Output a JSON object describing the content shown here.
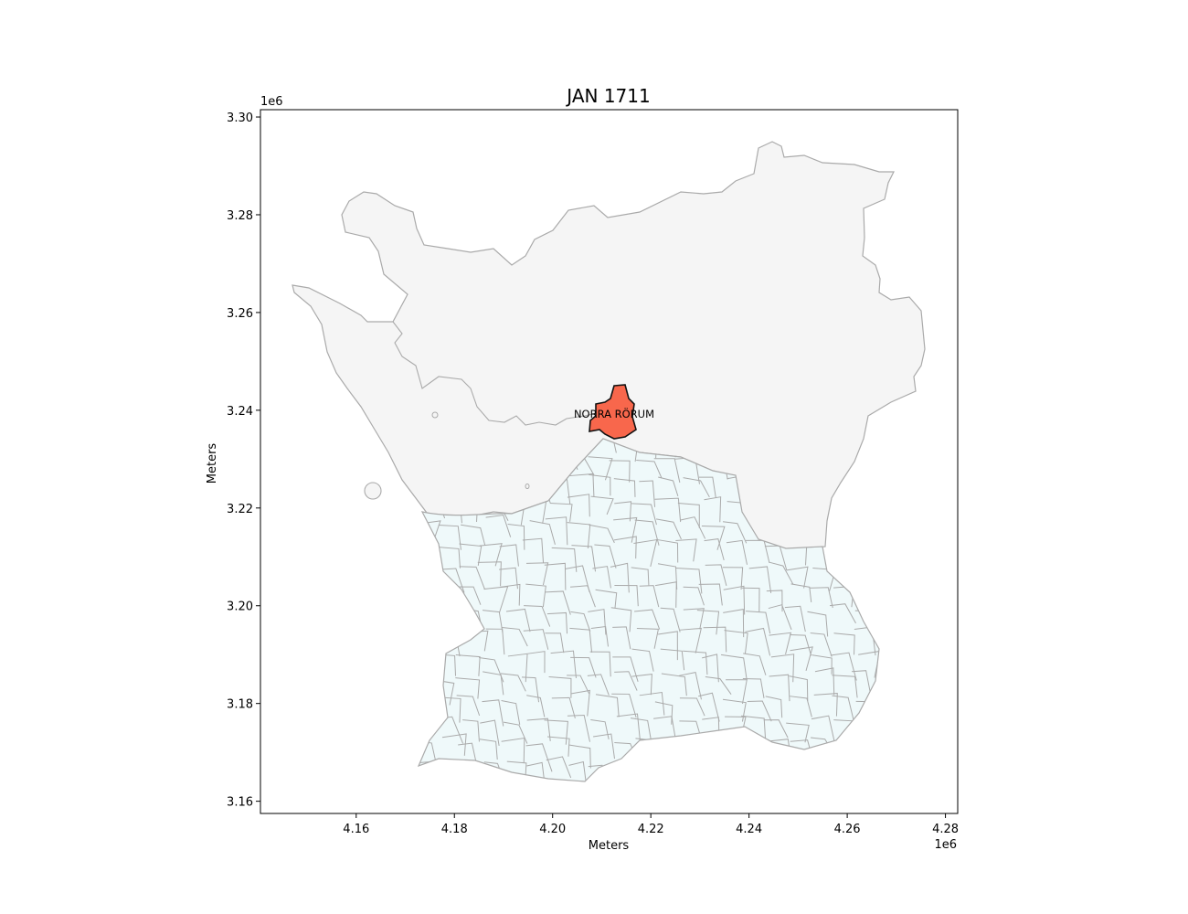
{
  "chart_data": {
    "type": "map",
    "title": "JAN 1711",
    "xlabel": "Meters",
    "ylabel": "Meters",
    "x_offset_label": "1e6",
    "y_offset_label": "1e6",
    "xlim": [
      4.1405,
      4.2825
    ],
    "ylim": [
      3.1575,
      3.3015
    ],
    "x_ticks": [
      4.16,
      4.18,
      4.2,
      4.22,
      4.24,
      4.26,
      4.28
    ],
    "x_tick_labels": [
      "4.16",
      "4.18",
      "4.20",
      "4.22",
      "4.24",
      "4.26",
      "4.28"
    ],
    "y_ticks": [
      3.16,
      3.18,
      3.2,
      3.22,
      3.24,
      3.26,
      3.28,
      3.3
    ],
    "y_tick_labels": [
      "3.16",
      "3.18",
      "3.20",
      "3.22",
      "3.24",
      "3.26",
      "3.28",
      "3.30"
    ],
    "grid": false,
    "highlighted_region": {
      "label": "NORRA RÖRUM",
      "x": 4.2125,
      "y": 3.2386
    },
    "colors": {
      "highlight_fill": "#f8674c",
      "highlight_stroke": "#111111",
      "north_fill": "#f5f5f5",
      "south_fill": "#eff9fa",
      "border": "#aaaaaa"
    }
  }
}
